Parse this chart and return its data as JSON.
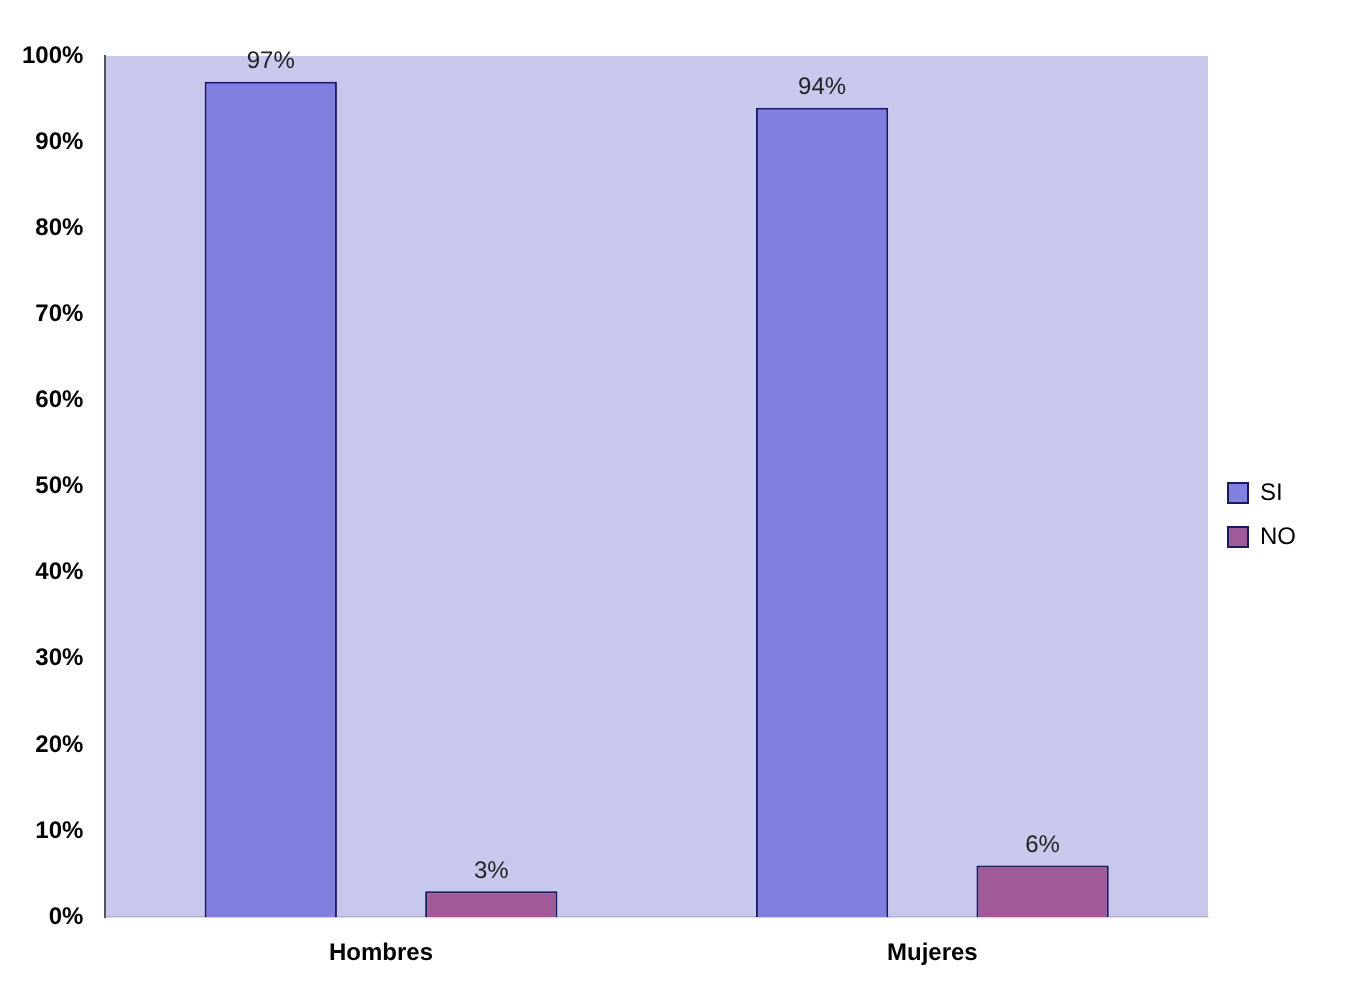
{
  "chart_data": {
    "type": "bar",
    "categories": [
      "Hombres",
      "Mujeres"
    ],
    "series": [
      {
        "name": "SI",
        "color": "#8080e0",
        "values": [
          97,
          94
        ],
        "value_labels": [
          "97%",
          "94%"
        ]
      },
      {
        "name": "NO",
        "color": "#a05a98",
        "values": [
          3,
          6
        ],
        "value_labels": [
          "3%",
          "6%"
        ]
      }
    ],
    "ylim": [
      0,
      100
    ],
    "yticks": [
      {
        "value": 0,
        "label": "0%"
      },
      {
        "value": 10,
        "label": "10%"
      },
      {
        "value": 20,
        "label": "20%"
      },
      {
        "value": 30,
        "label": "30%"
      },
      {
        "value": 40,
        "label": "40%"
      },
      {
        "value": 50,
        "label": "50%"
      },
      {
        "value": 60,
        "label": "60%"
      },
      {
        "value": 70,
        "label": "70%"
      },
      {
        "value": 80,
        "label": "80%"
      },
      {
        "value": 90,
        "label": "90%"
      },
      {
        "value": 100,
        "label": "100%"
      }
    ],
    "grid": false,
    "legend": "right"
  }
}
